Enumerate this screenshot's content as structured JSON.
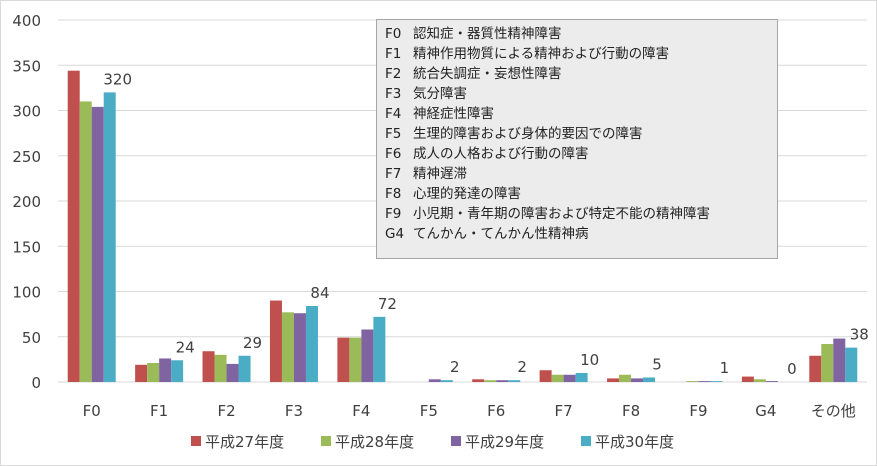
{
  "chart_data": {
    "type": "bar",
    "categories": [
      "F0",
      "F1",
      "F2",
      "F3",
      "F4",
      "F5",
      "F6",
      "F7",
      "F8",
      "F9",
      "G4",
      "その他"
    ],
    "ylim": [
      0,
      400
    ],
    "yticks": [
      0,
      50,
      100,
      150,
      200,
      250,
      300,
      350,
      400
    ],
    "grid": true,
    "legend_position": "bottom",
    "series": [
      {
        "name": "平成27年度",
        "color": "#c0504d",
        "values": [
          344,
          19,
          34,
          90,
          49,
          0,
          3,
          13,
          4,
          0,
          6,
          29
        ]
      },
      {
        "name": "平成28年度",
        "color": "#9bbb59",
        "values": [
          310,
          21,
          30,
          77,
          49,
          0,
          2,
          8,
          8,
          1,
          3,
          42
        ]
      },
      {
        "name": "平成29年度",
        "color": "#8064a2",
        "values": [
          304,
          26,
          20,
          76,
          58,
          3,
          2,
          8,
          4,
          1,
          1,
          48
        ]
      },
      {
        "name": "平成30年度",
        "color": "#4bacc6",
        "values": [
          320,
          24,
          29,
          84,
          72,
          2,
          2,
          10,
          5,
          1,
          0,
          38
        ],
        "data_labels": [
          "320",
          "24",
          "29",
          "84",
          "72",
          "2",
          "2",
          "10",
          "5",
          "1",
          "0",
          "38"
        ]
      }
    ]
  },
  "notes": [
    {
      "code": "F0",
      "text": "認知症・器質性精神障害"
    },
    {
      "code": "F1",
      "text": "精神作用物質による精神および行動の障害"
    },
    {
      "code": "F2",
      "text": "統合失調症・妄想性障害"
    },
    {
      "code": "F3",
      "text": "気分障害"
    },
    {
      "code": "F4",
      "text": "神経症性障害"
    },
    {
      "code": "F5",
      "text": "生理的障害および身体的要因での障害"
    },
    {
      "code": "F6",
      "text": "成人の人格および行動の障害"
    },
    {
      "code": "F7",
      "text": "精神遅滞"
    },
    {
      "code": "F8",
      "text": "心理的発達の障害"
    },
    {
      "code": "F9",
      "text": "小児期・青年期の障害および特定不能の精神障害"
    },
    {
      "code": "G4",
      "text": "てんかん・てんかん性精神病"
    }
  ]
}
